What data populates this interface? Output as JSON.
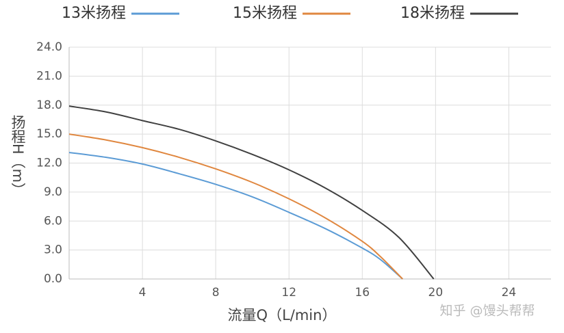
{
  "chart_data": {
    "type": "line",
    "x_label": "流量Q（L/min）",
    "y_label": "扬程H（m）",
    "watermark": "知乎 @馒头帮帮",
    "xlim": [
      0,
      26.3
    ],
    "xticks": [
      4,
      8,
      12,
      16,
      20,
      24
    ],
    "ylim": [
      0,
      24
    ],
    "yticks": [
      {
        "value": 0,
        "label": "0.0"
      },
      {
        "value": 3,
        "label": "3.0"
      },
      {
        "value": 6,
        "label": "6.0"
      },
      {
        "value": 9,
        "label": "9.0"
      },
      {
        "value": 12,
        "label": "12.0"
      },
      {
        "value": 15,
        "label": "15.0"
      },
      {
        "value": 18,
        "label": "18.0"
      },
      {
        "value": 21,
        "label": "21.0"
      },
      {
        "value": 24,
        "label": "24.0"
      }
    ],
    "grid": true,
    "legend": "top",
    "series": [
      {
        "name": "13米扬程",
        "color": "#5b9bd5",
        "x": [
          0,
          2,
          4,
          6,
          8,
          10,
          12,
          14,
          16,
          17,
          18.2
        ],
        "values": [
          13.1,
          12.6,
          11.9,
          10.9,
          9.8,
          8.5,
          6.9,
          5.2,
          3.2,
          2.0,
          0
        ]
      },
      {
        "name": "15米扬程",
        "color": "#e0873f",
        "x": [
          0,
          2,
          4,
          6,
          8,
          10,
          12,
          14,
          16,
          17,
          18.2
        ],
        "values": [
          15.0,
          14.4,
          13.6,
          12.6,
          11.4,
          10.0,
          8.3,
          6.3,
          3.9,
          2.3,
          0
        ]
      },
      {
        "name": "18米扬程",
        "color": "#404040",
        "x": [
          0,
          2,
          4,
          6,
          8,
          10,
          12,
          14,
          16,
          18,
          19.9
        ],
        "values": [
          17.9,
          17.3,
          16.4,
          15.5,
          14.3,
          12.9,
          11.3,
          9.4,
          7.1,
          4.3,
          0
        ]
      }
    ]
  }
}
